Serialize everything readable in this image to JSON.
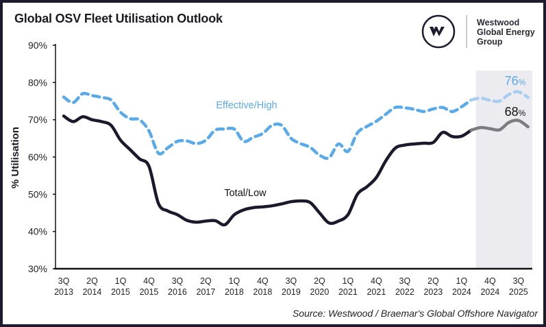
{
  "title": "Global OSV Fleet Utilisation Outlook",
  "logo": {
    "mark": "W",
    "text_lines": [
      "Westwood",
      "Global Energy",
      "Group"
    ]
  },
  "source": "Source: Westwood / Braemar's Global Offshore Navigator",
  "colors": {
    "high": "#5aaaea",
    "high_forecast": "#a9cdf0",
    "low": "#1a1a2c",
    "low_forecast": "#7b7b82",
    "forecast_shade": "#ebebf0",
    "frame": "#1e1b2e"
  },
  "chart_data": {
    "type": "line",
    "title": "Global OSV Fleet Utilisation Outlook",
    "ylabel": "% Utilisation",
    "xlabel": "",
    "ylim": [
      30,
      90
    ],
    "yticks": [
      "30%",
      "40%",
      "50%",
      "60%",
      "70%",
      "80%",
      "90%"
    ],
    "ytick_values": [
      30,
      40,
      50,
      60,
      70,
      80,
      90
    ],
    "xtick_labels": [
      [
        "3Q",
        "2013"
      ],
      [
        "2Q",
        "2014"
      ],
      [
        "1Q",
        "2015"
      ],
      [
        "4Q",
        "2015"
      ],
      [
        "3Q",
        "2016"
      ],
      [
        "2Q",
        "2017"
      ],
      [
        "1Q",
        "2018"
      ],
      [
        "4Q",
        "2018"
      ],
      [
        "3Q",
        "2019"
      ],
      [
        "2Q",
        "2020"
      ],
      [
        "1Q",
        "2021"
      ],
      [
        "4Q",
        "2021"
      ],
      [
        "3Q",
        "2022"
      ],
      [
        "2Q",
        "2023"
      ],
      [
        "1Q",
        "2024"
      ],
      [
        "4Q",
        "2024"
      ],
      [
        "3Q",
        "2025"
      ]
    ],
    "x_start": "3Q 2013",
    "x_step": "quarter",
    "forecast_from": "2Q 2024",
    "grid": false,
    "series": [
      {
        "name": "Effective/High",
        "style": "dashed",
        "values": [
          76.1,
          74.6,
          77.0,
          76.5,
          76.0,
          75.3,
          72.0,
          70.3,
          70.0,
          67.0,
          61.0,
          62.5,
          64.2,
          64.3,
          63.6,
          64.5,
          67.2,
          67.5,
          67.5,
          64.2,
          65.3,
          66.3,
          68.5,
          68.5,
          65.0,
          63.6,
          62.6,
          60.5,
          59.8,
          63.5,
          61.5,
          66.5,
          68.2,
          69.6,
          71.5,
          73.3,
          73.2,
          72.8,
          72.2,
          72.9,
          73.3,
          72.2,
          73.5,
          75.3,
          75.8,
          75.2,
          75.0,
          76.8,
          77.5,
          76.0
        ],
        "end_label": "76",
        "end_label_unit": "%"
      },
      {
        "name": "Total/Low",
        "style": "solid",
        "values": [
          71.0,
          69.5,
          70.8,
          70.0,
          69.5,
          68.5,
          64.5,
          62.0,
          59.5,
          57.5,
          47.5,
          45.5,
          44.5,
          43.0,
          42.5,
          42.8,
          42.9,
          41.8,
          44.5,
          45.8,
          46.4,
          46.6,
          46.9,
          47.4,
          48.0,
          48.2,
          47.8,
          45.0,
          42.3,
          42.8,
          44.5,
          50.0,
          52.0,
          54.5,
          59.0,
          62.4,
          63.2,
          63.5,
          63.7,
          63.9,
          66.6,
          65.5,
          65.6,
          67.2,
          67.9,
          67.6,
          67.3,
          69.3,
          69.8,
          68.1
        ],
        "end_label": "68",
        "end_label_unit": "%"
      }
    ]
  }
}
